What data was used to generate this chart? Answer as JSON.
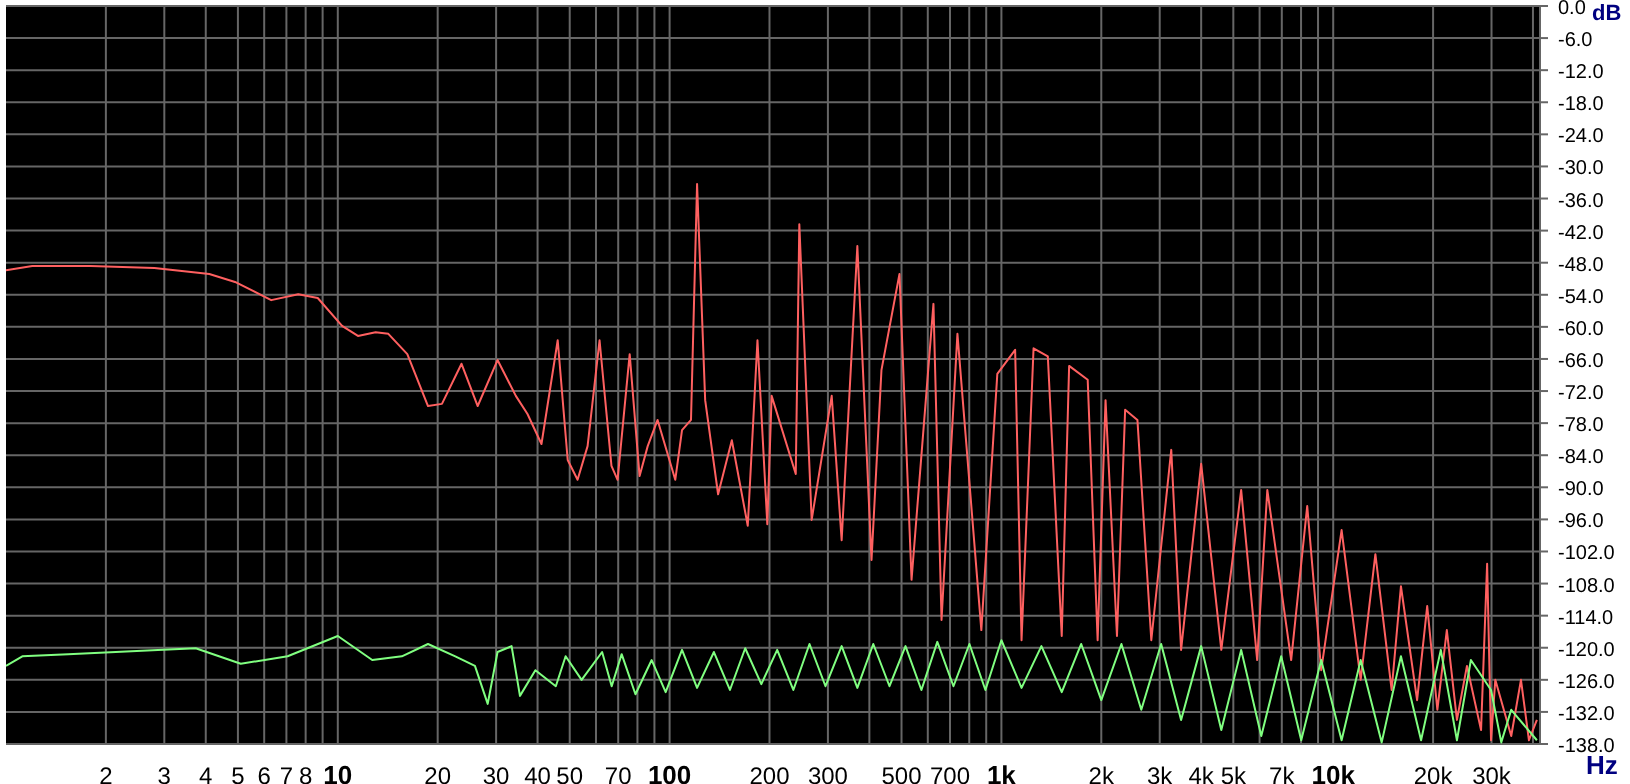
{
  "chart_data": {
    "type": "line",
    "xlabel": "Hz",
    "ylabel": "dB",
    "log": "x",
    "grid": true,
    "marker": "none",
    "xlim": [
      1,
      42000
    ],
    "ylim": [
      -138,
      0
    ],
    "xticks": [
      2,
      3,
      4,
      5,
      6,
      7,
      8,
      {
        "value": 9,
        "label": null
      },
      {
        "value": 10,
        "label": "10"
      },
      20,
      30,
      40,
      50,
      {
        "value": 60,
        "label": null
      },
      70,
      {
        "value": 80,
        "label": null
      },
      {
        "value": 90,
        "label": null
      },
      100,
      200,
      300,
      {
        "value": 400,
        "label": null
      },
      500,
      {
        "value": 600,
        "label": null
      },
      700,
      {
        "value": 800,
        "label": null
      },
      {
        "value": 900,
        "label": null
      },
      {
        "value": 1000,
        "label": "1k"
      },
      {
        "value": 2000,
        "label": "2k"
      },
      {
        "value": 3000,
        "label": "3k"
      },
      {
        "value": 4000,
        "label": "4k"
      },
      {
        "value": 5000,
        "label": "5k"
      },
      {
        "value": 6000,
        "label": null
      },
      {
        "value": 7000,
        "label": "7k"
      },
      {
        "value": 8000,
        "label": null
      },
      {
        "value": 9000,
        "label": null
      },
      {
        "value": 10000,
        "label": "10k"
      },
      {
        "value": 20000,
        "label": "20k"
      },
      {
        "value": 30000,
        "label": "30k"
      },
      {
        "value": 40000,
        "label": null
      }
    ],
    "yticks": [
      {
        "value": 0,
        "label": "0.0"
      },
      {
        "value": -6,
        "label": "-6.0"
      },
      {
        "value": -12,
        "label": "-12.0"
      },
      {
        "value": -18,
        "label": "-18.0"
      },
      {
        "value": -24,
        "label": "-24.0"
      },
      {
        "value": -30,
        "label": "-30.0"
      },
      {
        "value": -36,
        "label": "-36.0"
      },
      {
        "value": -42,
        "label": "-42.0"
      },
      {
        "value": -48,
        "label": "-48.0"
      },
      {
        "value": -54,
        "label": "-54.0"
      },
      {
        "value": -60,
        "label": "-60.0"
      },
      {
        "value": -66,
        "label": "-66.0"
      },
      {
        "value": -72,
        "label": "-72.0"
      },
      {
        "value": -78,
        "label": "-78.0"
      },
      {
        "value": -84,
        "label": "-84.0"
      },
      {
        "value": -90,
        "label": "-90.0"
      },
      {
        "value": -96,
        "label": "-96.0"
      },
      {
        "value": -102,
        "label": "-102.0"
      },
      {
        "value": -108,
        "label": "-108.0"
      },
      {
        "value": -114,
        "label": "-114.0"
      },
      {
        "value": -120,
        "label": "-120.0"
      },
      {
        "value": -126,
        "label": "-126.0"
      },
      {
        "value": -132,
        "label": "-132.0"
      },
      {
        "value": -138,
        "label": "-138.0"
      }
    ],
    "series": [
      {
        "color": "#ff6060",
        "x": [
          1.0,
          1.2,
          1.8,
          2.8,
          4.1,
          4.9,
          6.3,
          7.6,
          8.7,
          10.3,
          11.5,
          13,
          14.2,
          16.2,
          18.7,
          20.6,
          23.6,
          26.4,
          30.3,
          34.4,
          37.3,
          41.1,
          46,
          49.3,
          52.8,
          56.6,
          61.5,
          66.8,
          69.7,
          75.8,
          81.2,
          85.9,
          92,
          104,
          109,
          116,
          121,
          128,
          140,
          154,
          172,
          184,
          197,
          203,
          240,
          246,
          268,
          308,
          330,
          368,
          406,
          435,
          493,
          536,
          624,
          660,
          737,
          870,
          972,
          1100,
          1150,
          1250,
          1380,
          1520,
          1600,
          1820,
          1950,
          2060,
          2230,
          2360,
          2570,
          2830,
          3250,
          3480,
          4000,
          4600,
          5280,
          5900,
          6330,
          7470,
          8350,
          9200,
          10600,
          12100,
          13400,
          15000,
          16000,
          17900,
          19200,
          20600,
          22000,
          23600,
          25300,
          27900,
          29100,
          29900,
          30800,
          34400,
          36800,
          38900,
          41100
        ],
        "values": [
          -49.4,
          -48.6,
          -48.6,
          -49.0,
          -50.1,
          -51.6,
          -55.0,
          -53.9,
          -54.6,
          -59.8,
          -61.7,
          -61.0,
          -61.3,
          -65.1,
          -74.8,
          -74.4,
          -66.9,
          -74.8,
          -66.2,
          -72.9,
          -76.3,
          -81.9,
          -62.5,
          -84.9,
          -88.6,
          -82.3,
          -62.5,
          -86.0,
          -88.6,
          -65.1,
          -87.9,
          -82.3,
          -77.4,
          -88.6,
          -79.3,
          -77.4,
          -33.3,
          -73.7,
          -91.3,
          -81.2,
          -97.2,
          -62.5,
          -96.9,
          -72.9,
          -87.5,
          -40.8,
          -96.1,
          -72.9,
          -99.9,
          -44.9,
          -103.6,
          -68.1,
          -50.1,
          -107.3,
          -55.7,
          -114.8,
          -61.3,
          -116.7,
          -68.8,
          -64.3,
          -118.6,
          -64.0,
          -65.5,
          -117.8,
          -67.3,
          -69.9,
          -118.6,
          -73.7,
          -117.8,
          -75.5,
          -77.4,
          -118.6,
          -83.0,
          -120.4,
          -85.6,
          -120.4,
          -90.5,
          -122.3,
          -90.5,
          -122.3,
          -93.5,
          -124.2,
          -98.0,
          -126.0,
          -102.5,
          -127.9,
          -108.5,
          -129.8,
          -112.2,
          -131.6,
          -116.7,
          -133.5,
          -123.4,
          -135.4,
          -104.3,
          -137.3,
          -126.0,
          -136.5,
          -126.0,
          -137.3,
          -133.5
        ]
      },
      {
        "color": "#80ff80",
        "x": [
          1.0,
          1.12,
          1.54,
          2.87,
          3.73,
          5.1,
          7.06,
          10,
          12.7,
          15.6,
          18.7,
          22.6,
          25.9,
          28.3,
          30.3,
          33.4,
          35.4,
          39.4,
          45.4,
          48.6,
          54.3,
          62.6,
          66.9,
          71.7,
          78.9,
          88.3,
          97.3,
          109,
          121,
          136,
          152,
          169,
          189,
          211,
          236,
          264,
          295,
          330,
          368,
          411,
          460,
          514,
          574,
          641,
          717,
          801,
          895,
          1000,
          1150,
          1320,
          1520,
          1740,
          2000,
          2300,
          2640,
          3030,
          3480,
          4000,
          4600,
          5280,
          6070,
          6970,
          8010,
          9200,
          10600,
          12100,
          14000,
          16000,
          18400,
          21100,
          23600,
          26000,
          29900,
          32100,
          34400,
          41100
        ],
        "values": [
          -123.4,
          -121.6,
          -121.2,
          -120.4,
          -120.1,
          -123.0,
          -121.6,
          -117.8,
          -122.3,
          -121.6,
          -119.3,
          -121.6,
          -123.4,
          -130.5,
          -120.8,
          -119.7,
          -129.0,
          -124.2,
          -127.2,
          -121.6,
          -126.0,
          -120.8,
          -127.2,
          -121.2,
          -128.7,
          -122.3,
          -128.3,
          -120.4,
          -127.5,
          -120.8,
          -127.9,
          -120.1,
          -126.8,
          -120.4,
          -127.9,
          -119.3,
          -127.2,
          -119.7,
          -127.5,
          -119.3,
          -127.2,
          -119.7,
          -127.9,
          -118.9,
          -127.2,
          -119.3,
          -127.9,
          -118.6,
          -127.5,
          -119.7,
          -128.3,
          -119.3,
          -129.8,
          -119.3,
          -131.6,
          -119.3,
          -133.5,
          -119.7,
          -135.4,
          -120.4,
          -136.5,
          -121.6,
          -137.3,
          -122.3,
          -137.3,
          -122.3,
          -137.7,
          -121.6,
          -137.3,
          -120.4,
          -137.3,
          -122.3,
          -127.9,
          -137.7,
          -131.6,
          -137.3
        ]
      }
    ]
  }
}
